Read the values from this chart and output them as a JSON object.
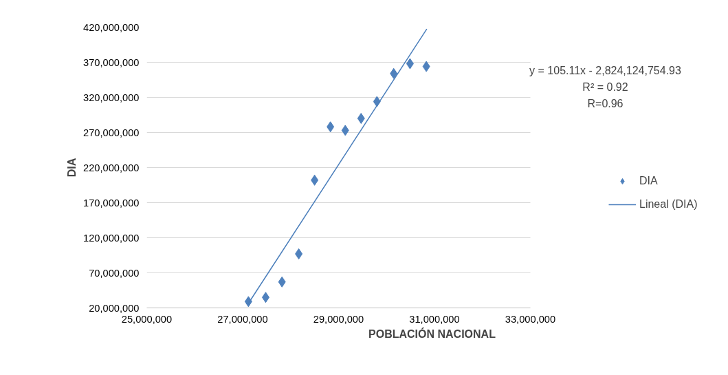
{
  "chart_data": {
    "type": "scatter",
    "xlabel": "POBLACIÓN NACIONAL",
    "ylabel": "DIA",
    "xlim": [
      25000000,
      33000000
    ],
    "xticks": [
      {
        "value": 25000000,
        "label": "25,000,000"
      },
      {
        "value": 27000000,
        "label": "27,000,000"
      },
      {
        "value": 29000000,
        "label": "29,000,000"
      },
      {
        "value": 31000000,
        "label": "31,000,000"
      },
      {
        "value": 33000000,
        "label": "33,000,000"
      }
    ],
    "ylim": [
      20000000,
      420000000
    ],
    "yticks": [
      {
        "value": 20000000,
        "label": "20,000,000"
      },
      {
        "value": 70000000,
        "label": "70,000,000"
      },
      {
        "value": 120000000,
        "label": "120,000,000"
      },
      {
        "value": 170000000,
        "label": "170,000,000"
      },
      {
        "value": 220000000,
        "label": "220,000,000"
      },
      {
        "value": 270000000,
        "label": "270,000,000"
      },
      {
        "value": 320000000,
        "label": "320,000,000"
      },
      {
        "value": 370000000,
        "label": "370,000,000"
      },
      {
        "value": 420000000,
        "label": "420,000,000"
      }
    ],
    "grid": "y",
    "legend": "right",
    "series": [
      {
        "name": "DIA",
        "marker": "diamond",
        "color": "#4f81bd",
        "x": [
          27120000,
          27480000,
          27820000,
          28170000,
          28500000,
          28830000,
          29140000,
          29470000,
          29800000,
          30150000,
          30490000,
          30830000
        ],
        "values": [
          29000000,
          35000000,
          57000000,
          97000000,
          202000000,
          278000000,
          273000000,
          290000000,
          314000000,
          354000000,
          368000000,
          364000000
        ]
      },
      {
        "name": "Lineal (DIA)",
        "type": "line",
        "color": "#4a7ebb",
        "x": [
          27100000,
          30840000
        ],
        "values": [
          24400000,
          417500000
        ]
      }
    ],
    "annotations": [
      "y = 105.11x - 2,824,124,754.93",
      "R² = 0.92",
      "R=0.96"
    ]
  }
}
